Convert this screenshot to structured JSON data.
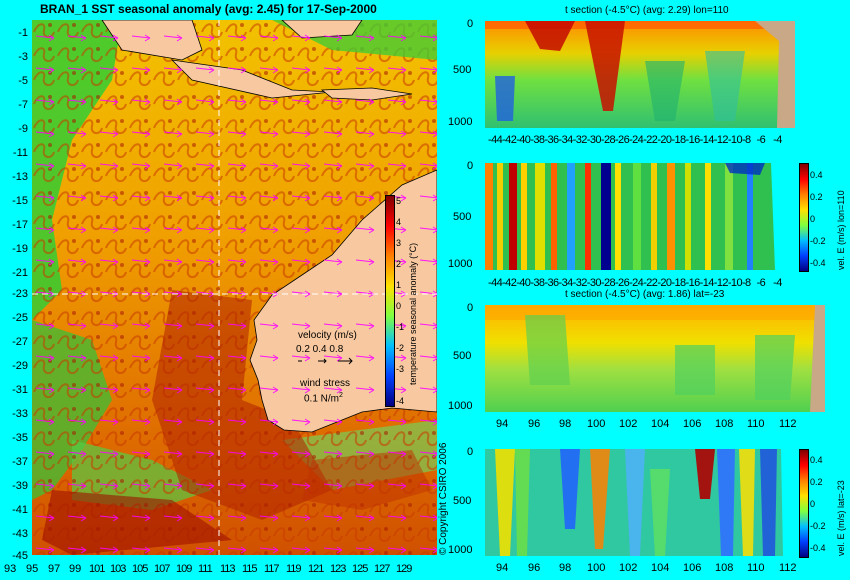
{
  "map": {
    "title": "BRAN_1 SST seasonal anomaly (avg: 2.45) for 17-Sep-2000",
    "lat_ticks": [
      "-1",
      "-3",
      "-5",
      "-7",
      "-9",
      "-11",
      "-13",
      "-15",
      "-17",
      "-19",
      "-21",
      "-23",
      "-25",
      "-27",
      "-29",
      "-31",
      "-33",
      "-35",
      "-37",
      "-39",
      "-41",
      "-43",
      "-45"
    ],
    "lon_ticks": [
      "93",
      "95",
      "97",
      "99",
      "101",
      "103",
      "105",
      "107",
      "109",
      "111",
      "113",
      "115",
      "117",
      "119",
      "121",
      "123",
      "125",
      "127",
      "129"
    ],
    "colorbar": {
      "ticks": [
        "5",
        "4",
        "3",
        "2",
        "1",
        "0",
        "-1",
        "-2",
        "-3",
        "-4"
      ],
      "label": "temperature seasonal anomaly (°C)"
    },
    "legend": {
      "velocity_title": "velocity (m/s)",
      "velocity_scale": "0.2 0.4 0.8",
      "wind_title": "wind stress",
      "wind_value": "0.1 N/m",
      "wind_exp": "2"
    },
    "copyright": "© Copyright CSIRO 2006"
  },
  "panels": [
    {
      "title": "t section (-4.5°C) (avg: 2.29) lon=110",
      "y_ticks": [
        "0",
        "500",
        "1000"
      ],
      "x_ticks": [
        "-44",
        "-42",
        "-40",
        "-38",
        "-36",
        "-34",
        "-32",
        "-30",
        "-28",
        "-26",
        "-24",
        "-22",
        "-20",
        "-18",
        "-16",
        "-14",
        "-12",
        "-10",
        "-8",
        "-6",
        "-4"
      ]
    },
    {
      "title": "",
      "y_ticks": [
        "0",
        "500",
        "1000"
      ],
      "x_ticks": [
        "-44",
        "-42",
        "-40",
        "-38",
        "-36",
        "-34",
        "-32",
        "-30",
        "-28",
        "-26",
        "-24",
        "-22",
        "-20",
        "-18",
        "-16",
        "-14",
        "-12",
        "-10",
        "-8",
        "-6",
        "-4"
      ],
      "cb_ticks": [
        "0.4",
        "0.2",
        "0",
        "-0.2",
        "-0.4"
      ],
      "cb_label": "vel. E (m/s) lon=110"
    },
    {
      "title": "t section (-4.5°C) (avg: 1.86) lat=-23",
      "y_ticks": [
        "0",
        "500",
        "1000"
      ],
      "x_ticks": [
        "94",
        "96",
        "98",
        "100",
        "102",
        "104",
        "106",
        "108",
        "110",
        "112"
      ]
    },
    {
      "title": "",
      "y_ticks": [
        "0",
        "500",
        "1000"
      ],
      "x_ticks": [
        "94",
        "96",
        "98",
        "100",
        "102",
        "104",
        "106",
        "108",
        "110",
        "112"
      ],
      "cb_ticks": [
        "0.4",
        "0.2",
        "0",
        "-0.2",
        "-0.4"
      ],
      "cb_label": "vel. E (m/s) lat=-23"
    }
  ],
  "chart_data": [
    {
      "type": "heatmap",
      "title": "BRAN_1 SST seasonal anomaly (avg: 2.45) for 17-Sep-2000",
      "xlim": [
        93,
        129.5
      ],
      "ylim": [
        -45,
        0
      ],
      "color_range": [
        -4,
        5
      ],
      "colorbar_label": "temperature seasonal anomaly (°C)",
      "average": 2.45,
      "date": "17-Sep-2000",
      "crosshair": {
        "lon": 110,
        "lat": -23
      }
    },
    {
      "type": "heatmap",
      "title": "t section (-4.5°C) (avg: 2.29) lon=110",
      "xlim": [
        -45,
        -3
      ],
      "ylim": [
        1050,
        0
      ],
      "average": 2.29,
      "land_from_lat": -8
    },
    {
      "type": "heatmap",
      "title": "",
      "xlim": [
        -45,
        -3
      ],
      "ylim": [
        1050,
        0
      ],
      "color_range": [
        -0.4,
        0.4
      ],
      "colorbar_label": "vel. E (m/s) lon=110"
    },
    {
      "type": "heatmap",
      "title": "t section (-4.5°C) (avg: 1.86) lat=-23",
      "xlim": [
        93,
        114
      ],
      "ylim": [
        1050,
        0
      ],
      "average": 1.86,
      "land_from_lon": 113.5
    },
    {
      "type": "heatmap",
      "title": "",
      "xlim": [
        93,
        114
      ],
      "ylim": [
        1050,
        0
      ],
      "color_range": [
        -0.4,
        0.4
      ],
      "colorbar_label": "vel. E (m/s) lat=-23"
    }
  ]
}
